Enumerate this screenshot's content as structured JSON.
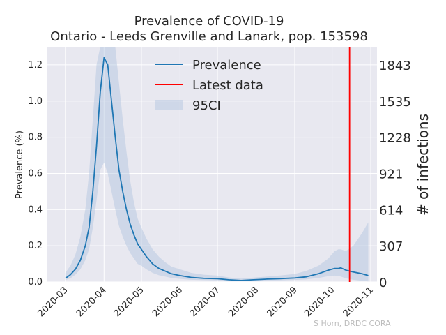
{
  "chart_data": {
    "type": "line",
    "title": "Prevalence of COVID-19",
    "subtitle": "Ontario - Leeds Grenville and Lanark, pop. 153598",
    "ylabel": "Prevalence (%)",
    "ylabel_right": "# of infections",
    "ylim": [
      0,
      1.3
    ],
    "xlim": [
      "2020-02-15",
      "2020-11-06"
    ],
    "x_ticks": [
      "2020-03",
      "2020-04",
      "2020-05",
      "2020-06",
      "2020-07",
      "2020-08",
      "2020-09",
      "2020-10",
      "2020-11"
    ],
    "x_tick_dates": [
      "2020-03-01",
      "2020-04-01",
      "2020-05-01",
      "2020-06-01",
      "2020-07-01",
      "2020-08-01",
      "2020-09-01",
      "2020-10-01",
      "2020-11-01"
    ],
    "y_ticks": [
      "0.0",
      "0.2",
      "0.4",
      "0.6",
      "0.8",
      "1.0",
      "1.2"
    ],
    "y_tick_values": [
      0,
      0.2,
      0.4,
      0.6,
      0.8,
      1.0,
      1.2
    ],
    "right_ticks": [
      "0",
      "307",
      "614",
      "921",
      "1228",
      "1535",
      "1843"
    ],
    "right_tick_values": [
      0,
      307,
      614,
      921,
      1228,
      1535,
      1843
    ],
    "grid": true,
    "legend_position": "top-center",
    "latest_data_date": "2020-10-15",
    "credit": "S Horn, DRDC CORA",
    "series": [
      {
        "name": "Prevalence",
        "color": "#1f77b4",
        "x": [
          "2020-03-01",
          "2020-03-05",
          "2020-03-09",
          "2020-03-13",
          "2020-03-17",
          "2020-03-20",
          "2020-03-23",
          "2020-03-26",
          "2020-03-29",
          "2020-04-01",
          "2020-04-04",
          "2020-04-07",
          "2020-04-10",
          "2020-04-13",
          "2020-04-16",
          "2020-04-19",
          "2020-04-22",
          "2020-04-25",
          "2020-04-28",
          "2020-05-01",
          "2020-05-05",
          "2020-05-10",
          "2020-05-15",
          "2020-05-20",
          "2020-05-25",
          "2020-06-01",
          "2020-06-10",
          "2020-06-20",
          "2020-07-01",
          "2020-07-10",
          "2020-07-20",
          "2020-07-30",
          "2020-08-10",
          "2020-08-20",
          "2020-09-01",
          "2020-09-10",
          "2020-09-20",
          "2020-09-28",
          "2020-10-03",
          "2020-10-06",
          "2020-10-08",
          "2020-10-12",
          "2020-10-18",
          "2020-10-25",
          "2020-10-30"
        ],
        "values": [
          0.02,
          0.04,
          0.07,
          0.12,
          0.2,
          0.3,
          0.5,
          0.75,
          1.05,
          1.24,
          1.2,
          1.0,
          0.8,
          0.62,
          0.5,
          0.4,
          0.32,
          0.26,
          0.21,
          0.18,
          0.14,
          0.1,
          0.075,
          0.06,
          0.045,
          0.035,
          0.025,
          0.02,
          0.018,
          0.012,
          0.008,
          0.012,
          0.016,
          0.018,
          0.022,
          0.028,
          0.045,
          0.065,
          0.075,
          0.075,
          0.078,
          0.065,
          0.055,
          0.045,
          0.035
        ]
      },
      {
        "name": "95CI",
        "color": "#b0c4de",
        "x": [
          "2020-03-01",
          "2020-03-05",
          "2020-03-09",
          "2020-03-13",
          "2020-03-17",
          "2020-03-20",
          "2020-03-23",
          "2020-03-26",
          "2020-03-29",
          "2020-04-01",
          "2020-04-04",
          "2020-04-07",
          "2020-04-10",
          "2020-04-13",
          "2020-04-16",
          "2020-04-19",
          "2020-04-22",
          "2020-04-25",
          "2020-04-28",
          "2020-05-01",
          "2020-05-05",
          "2020-05-10",
          "2020-05-15",
          "2020-05-20",
          "2020-05-25",
          "2020-06-01",
          "2020-06-10",
          "2020-06-20",
          "2020-07-01",
          "2020-07-10",
          "2020-07-20",
          "2020-07-30",
          "2020-08-10",
          "2020-08-20",
          "2020-09-01",
          "2020-09-10",
          "2020-09-20",
          "2020-09-28",
          "2020-10-03",
          "2020-10-06",
          "2020-10-08",
          "2020-10-12",
          "2020-10-18",
          "2020-10-25",
          "2020-10-30"
        ],
        "lower": [
          0.01,
          0.02,
          0.04,
          0.07,
          0.12,
          0.18,
          0.3,
          0.45,
          0.62,
          0.66,
          0.6,
          0.5,
          0.4,
          0.31,
          0.25,
          0.2,
          0.16,
          0.13,
          0.1,
          0.09,
          0.07,
          0.05,
          0.037,
          0.03,
          0.022,
          0.017,
          0.012,
          0.01,
          0.009,
          0.006,
          0.004,
          0.006,
          0.008,
          0.009,
          0.011,
          0.014,
          0.022,
          0.032,
          0.035,
          0.033,
          0.03,
          0.02,
          0.012,
          0.006,
          0.003
        ],
        "upper": [
          0.05,
          0.09,
          0.15,
          0.25,
          0.4,
          0.6,
          0.9,
          1.2,
          1.35,
          1.4,
          1.4,
          1.4,
          1.3,
          1.1,
          0.9,
          0.72,
          0.56,
          0.44,
          0.35,
          0.3,
          0.24,
          0.18,
          0.14,
          0.11,
          0.085,
          0.07,
          0.05,
          0.04,
          0.035,
          0.025,
          0.018,
          0.024,
          0.03,
          0.036,
          0.044,
          0.06,
          0.09,
          0.13,
          0.17,
          0.18,
          0.18,
          0.17,
          0.2,
          0.27,
          0.33
        ]
      }
    ]
  }
}
